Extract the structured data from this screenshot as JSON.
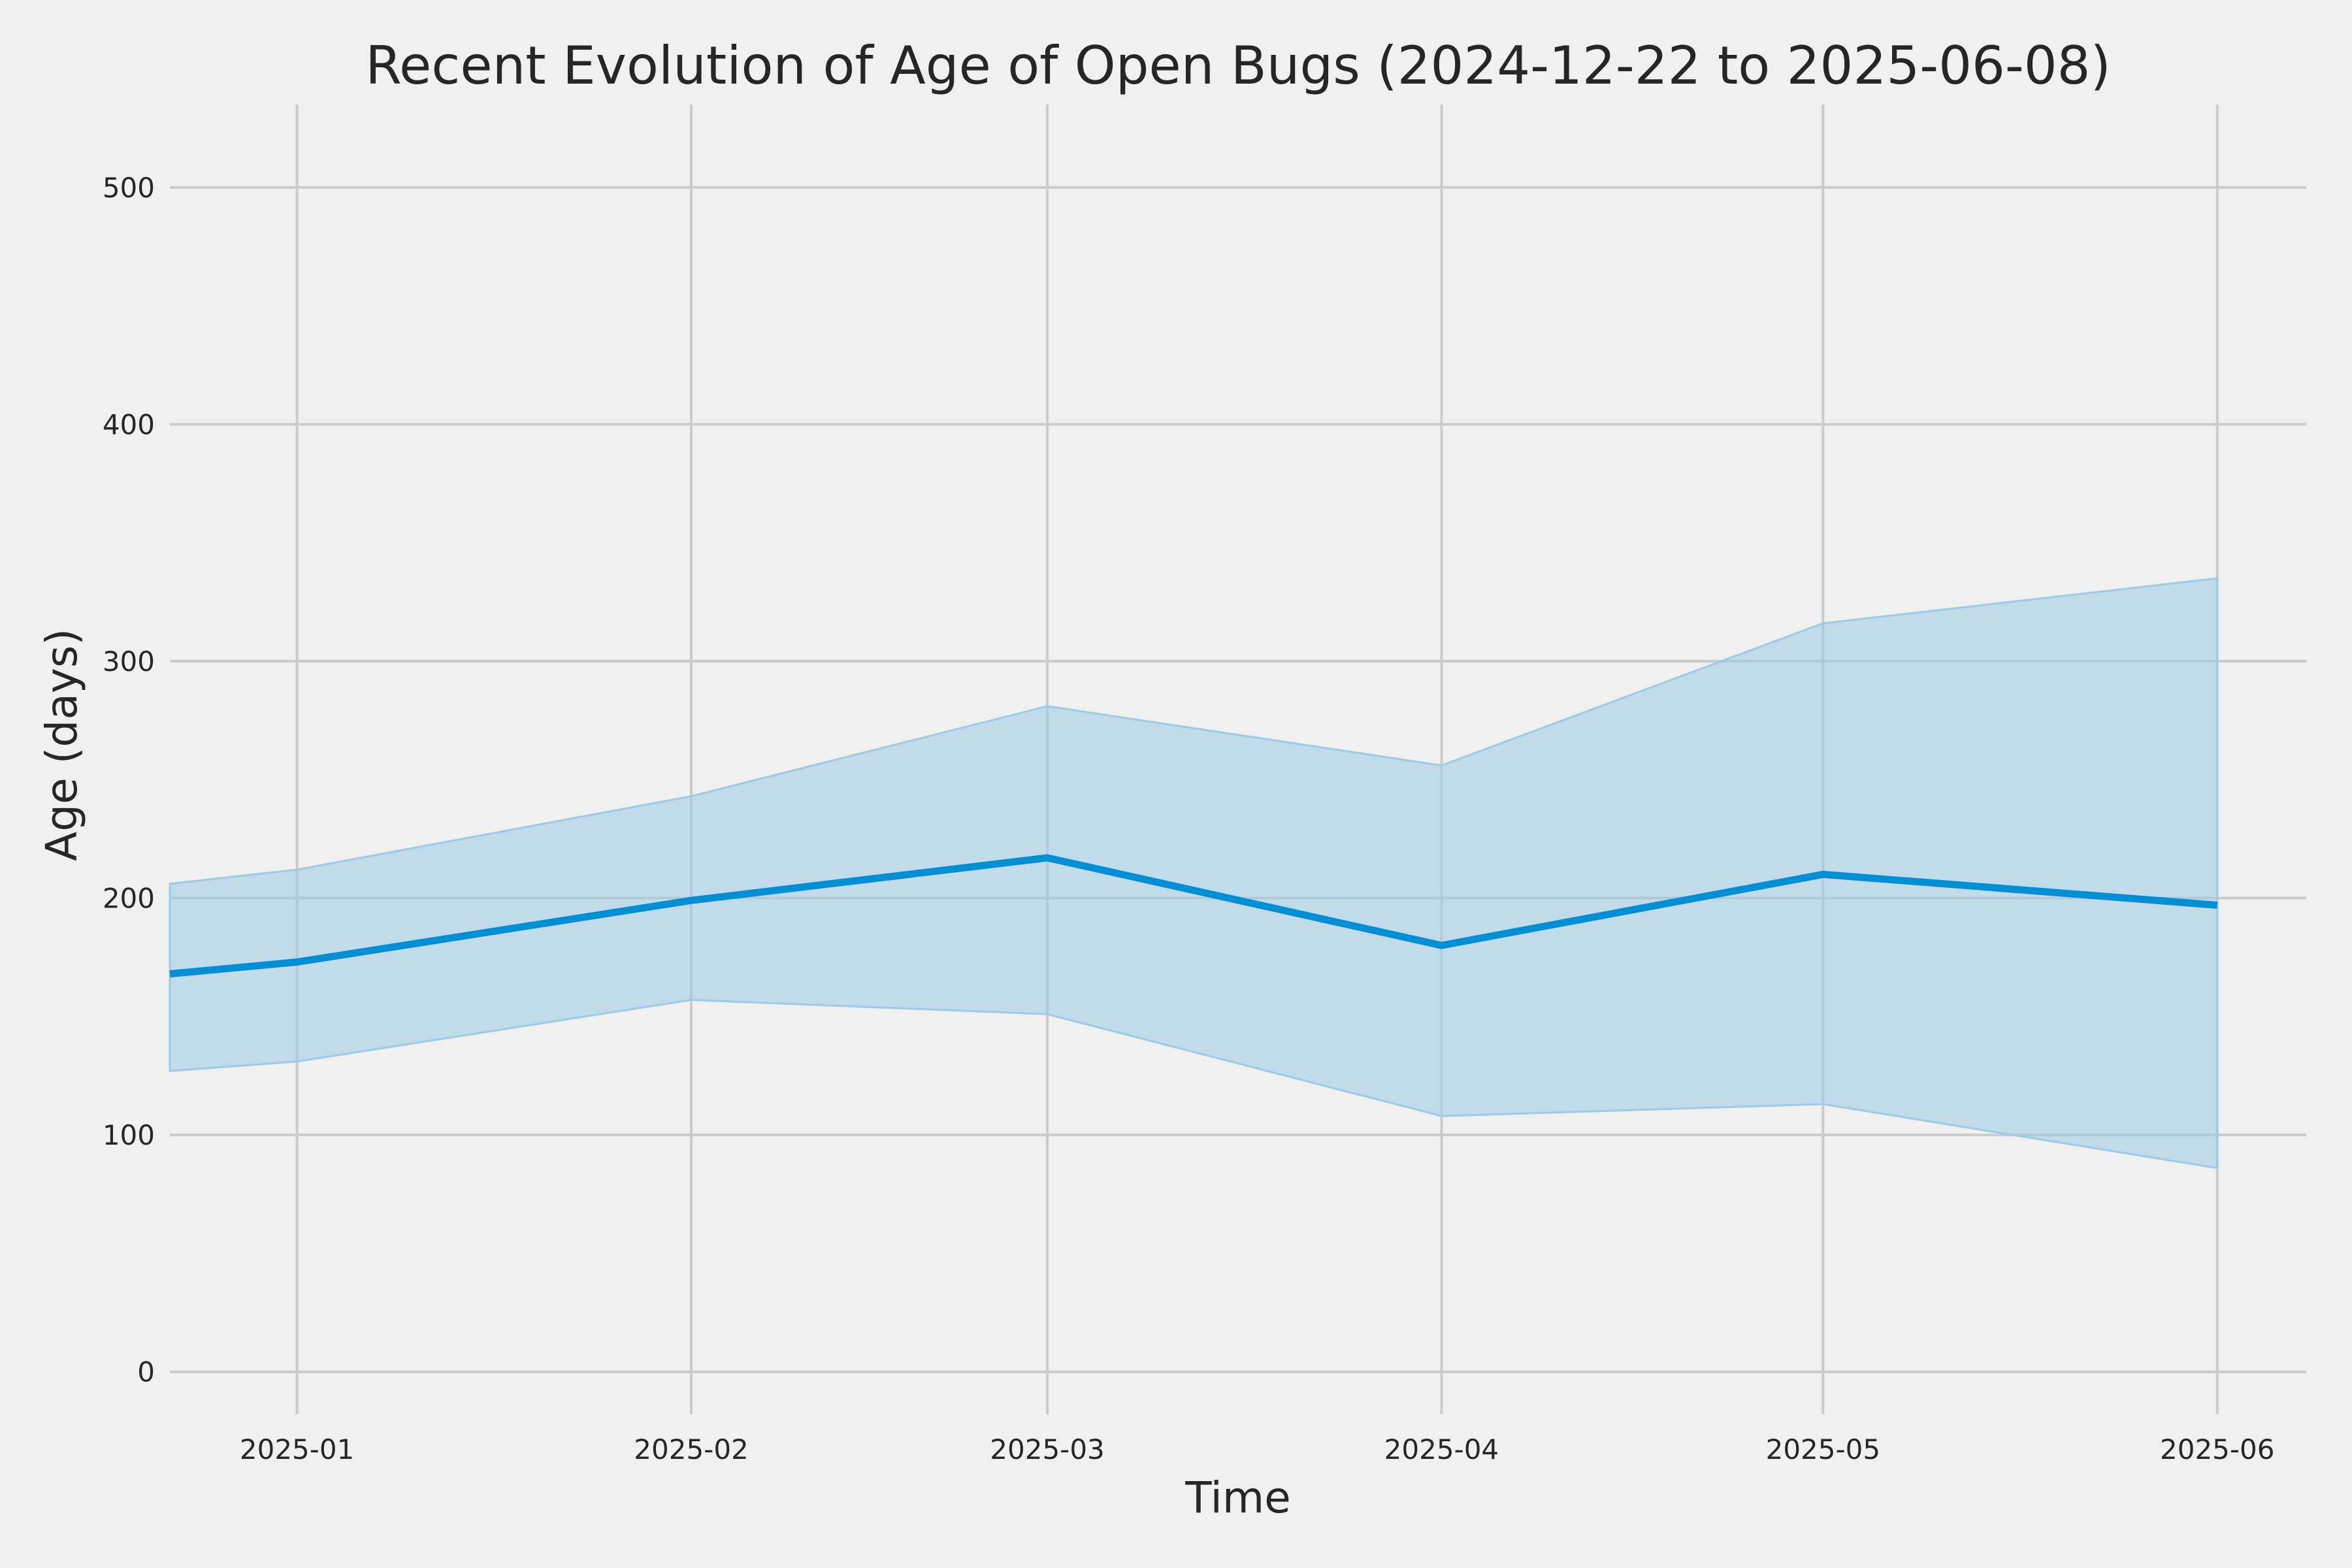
{
  "chart_data": {
    "type": "line",
    "title": "Recent Evolution of Age of Open Bugs (2024-12-22 to 2025-06-08)",
    "xlabel": "Time",
    "ylabel": "Age (days)",
    "x_tick_labels": [
      "2025-01",
      "2025-02",
      "2025-03",
      "2025-04",
      "2025-05",
      "2025-06"
    ],
    "y_tick_labels": [
      "0",
      "100",
      "200",
      "300",
      "400",
      "500"
    ],
    "ylim": [
      -18,
      535
    ],
    "xlim": [
      "2024-12-22",
      "2025-06-08"
    ],
    "grid": true,
    "line_color": "#008fd5",
    "band_color": "#9ccbe6",
    "series": [
      {
        "x": [
          "2024-12-22",
          "2025-01-01",
          "2025-02-01",
          "2025-03-01",
          "2025-04-01",
          "2025-05-01",
          "2025-06-01"
        ],
        "values": [
          168,
          173,
          199,
          217,
          180,
          210,
          197
        ],
        "upper": [
          206,
          212,
          243,
          281,
          256,
          316,
          335
        ],
        "lower": [
          127,
          131,
          157,
          151,
          108,
          113,
          86
        ]
      }
    ]
  }
}
